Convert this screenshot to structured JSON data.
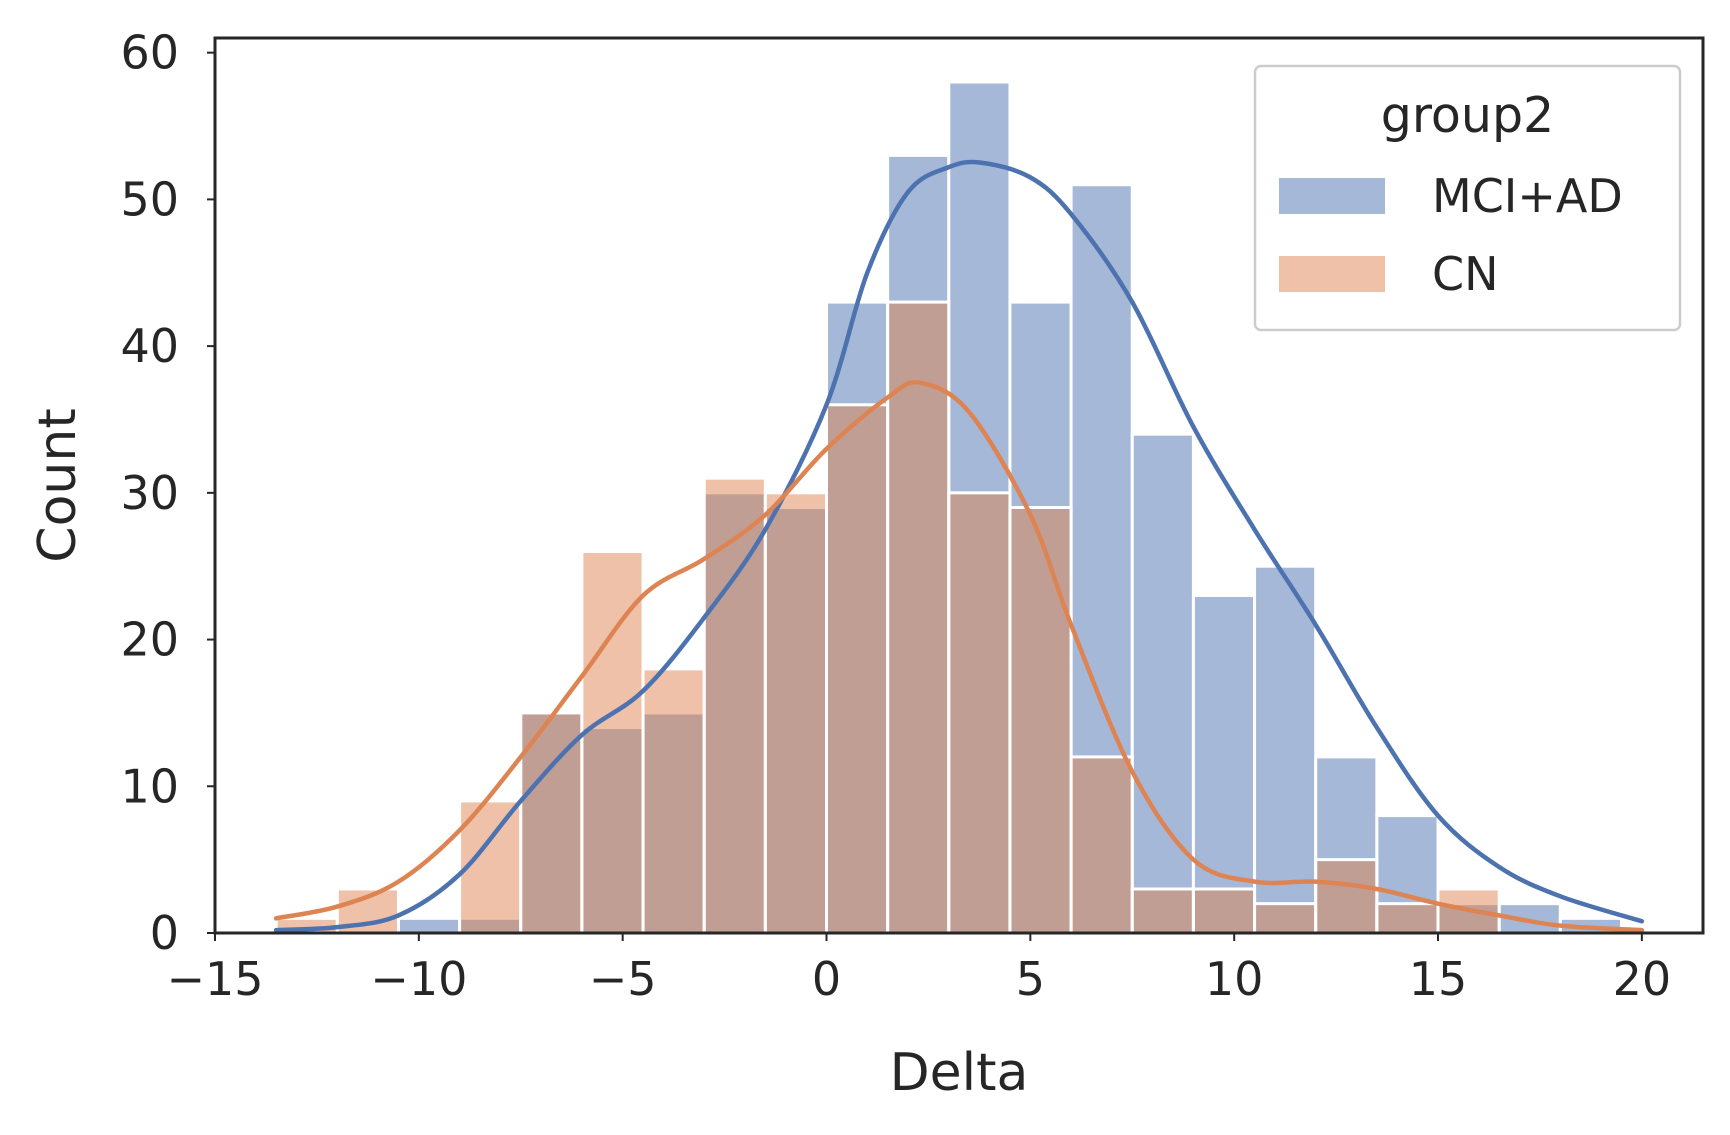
{
  "chart_data": {
    "type": "histogram",
    "xlabel": "Delta",
    "ylabel": "Count",
    "xlim": [
      -15,
      21.5
    ],
    "ylim": [
      0,
      61
    ],
    "x_ticks": [
      -15,
      -10,
      -5,
      0,
      5,
      10,
      15,
      20
    ],
    "x_tick_labels": [
      "−15",
      "−10",
      "−5",
      "0",
      "5",
      "10",
      "15",
      "20"
    ],
    "y_ticks": [
      0,
      10,
      20,
      30,
      40,
      50,
      60
    ],
    "y_tick_labels": [
      "0",
      "10",
      "20",
      "30",
      "40",
      "50",
      "60"
    ],
    "grid": false,
    "legend": {
      "title": "group2",
      "position": "upper right",
      "entries": [
        "MCI+AD",
        "CN"
      ]
    },
    "bin_edges": [
      -13.5,
      -12.0,
      -10.5,
      -9.0,
      -7.5,
      -6.0,
      -4.5,
      -3.0,
      -1.5,
      0.0,
      1.5,
      3.0,
      4.5,
      6.0,
      7.5,
      9.0,
      10.5,
      12.0,
      13.5,
      15.0,
      16.5,
      18.0,
      19.5
    ],
    "series": [
      {
        "name": "MCI+AD",
        "color": "#4C72B0",
        "counts": [
          0,
          0,
          1,
          1,
          15,
          14,
          15,
          30,
          29,
          43,
          53,
          58,
          43,
          51,
          34,
          23,
          25,
          12,
          8,
          2,
          2,
          1
        ],
        "kde": [
          [
            -13.5,
            0.2
          ],
          [
            -12,
            0.4
          ],
          [
            -10.5,
            1.2
          ],
          [
            -9,
            4
          ],
          [
            -7.5,
            9
          ],
          [
            -6,
            13.5
          ],
          [
            -4.5,
            16.5
          ],
          [
            -3,
            21.5
          ],
          [
            -1.5,
            27.5
          ],
          [
            0,
            36
          ],
          [
            1,
            45
          ],
          [
            2,
            50.5
          ],
          [
            3,
            52.2
          ],
          [
            3.8,
            52.5
          ],
          [
            5,
            51.5
          ],
          [
            6,
            49
          ],
          [
            7.5,
            43
          ],
          [
            9,
            34.5
          ],
          [
            10.5,
            27.5
          ],
          [
            12,
            21
          ],
          [
            13.5,
            14
          ],
          [
            15,
            8
          ],
          [
            16.5,
            4.5
          ],
          [
            18,
            2.5
          ],
          [
            20,
            0.8
          ]
        ]
      },
      {
        "name": "CN",
        "color": "#DD8452",
        "counts": [
          1,
          3,
          0,
          9,
          15,
          26,
          18,
          31,
          30,
          36,
          43,
          30,
          29,
          12,
          3,
          3,
          2,
          5,
          2,
          3,
          0,
          0
        ],
        "kde": [
          [
            -13.5,
            1
          ],
          [
            -12,
            1.8
          ],
          [
            -10.5,
            3.5
          ],
          [
            -9,
            7
          ],
          [
            -7.5,
            12
          ],
          [
            -6,
            17.5
          ],
          [
            -4.5,
            23
          ],
          [
            -3,
            25.5
          ],
          [
            -1.5,
            28.5
          ],
          [
            0,
            33
          ],
          [
            1.5,
            36.5
          ],
          [
            2.3,
            37.5
          ],
          [
            3.5,
            35.5
          ],
          [
            5,
            28.5
          ],
          [
            6,
            21
          ],
          [
            7.5,
            11
          ],
          [
            9,
            5
          ],
          [
            10.5,
            3.5
          ],
          [
            12,
            3.5
          ],
          [
            13.5,
            3
          ],
          [
            15,
            2
          ],
          [
            16.5,
            1.2
          ],
          [
            18,
            0.5
          ],
          [
            20,
            0.2
          ]
        ]
      }
    ]
  }
}
